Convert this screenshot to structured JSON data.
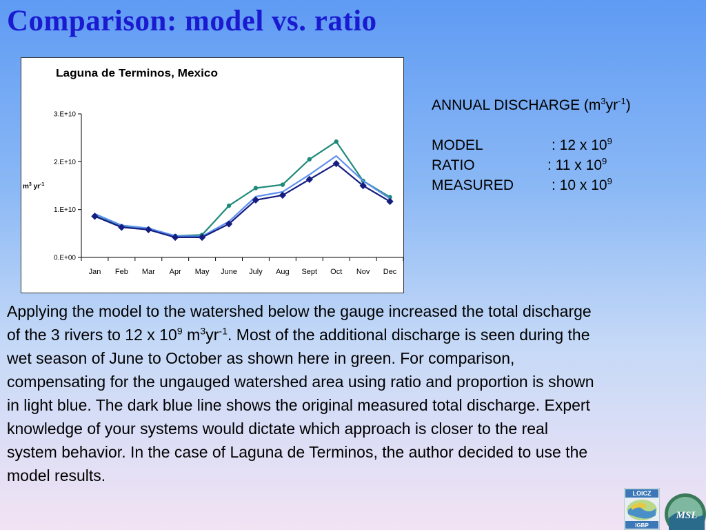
{
  "slide": {
    "title": "Comparison: model vs. ratio"
  },
  "annual": {
    "heading_pre": "ANNUAL DISCHARGE (m",
    "heading_exp1": "3",
    "heading_mid": "yr",
    "heading_exp2": "-1",
    "heading_post": ")",
    "rows": [
      {
        "label": "MODEL",
        "value": ": 12 x 10",
        "exp": "9"
      },
      {
        "label": "RATIO",
        "value": ": 11 x 10",
        "exp": "9"
      },
      {
        "label": "MEASURED",
        "value": ": 10 x 10",
        "exp": "9"
      }
    ]
  },
  "paragraph": {
    "part1": "Applying the model to the watershed below the gauge increased the total discharge of the 3 rivers to 12 x 10",
    "exp1": "9",
    "part2": " m",
    "exp2": "3",
    "part3": "yr",
    "exp3": "-1",
    "part4": ". Most of the additional discharge is seen during the wet season of June to October as shown here in green. For comparison, compensating for the ungauged watershed area using ratio and proportion is shown in light blue. The dark blue line shows the original measured total discharge. Expert knowledge of your systems would dictate which approach is closer to the real system behavior. In the case of Laguna de Terminos, the author decided to use the model results."
  },
  "logos": {
    "logo1_top": "LOICZ",
    "logo1_bottom": "IGBP",
    "logo2_text": "MSL"
  },
  "chart_data": {
    "type": "line",
    "title": "Laguna de Terminos, Mexico",
    "ylabel": "m",
    "ylabel_exp1": "3",
    "ylabel_mid": " yr",
    "ylabel_exp2": "-1",
    "categories": [
      "Jan",
      "Feb",
      "Mar",
      "Apr",
      "May",
      "June",
      "July",
      "Aug",
      "Sept",
      "Oct",
      "Nov",
      "Dec"
    ],
    "yticks": [
      0,
      10000000000,
      20000000000,
      30000000000
    ],
    "yticklabels": [
      "0.E+00",
      "1.E+10",
      "2.E+10",
      "3.E+10"
    ],
    "ylim": [
      0,
      30000000000
    ],
    "series": [
      {
        "key": "model",
        "color": "#1e8a7a",
        "marker": "circle",
        "values": [
          8700000000,
          6500000000,
          6000000000,
          4500000000,
          4700000000,
          10800000000,
          14500000000,
          15200000000,
          20500000000,
          24200000000,
          16000000000,
          12600000000
        ]
      },
      {
        "key": "ratio",
        "color": "#5b8ff0",
        "marker": "none",
        "values": [
          9100000000,
          6700000000,
          6100000000,
          4500000000,
          4400000000,
          7500000000,
          12700000000,
          13700000000,
          17300000000,
          21200000000,
          16000000000,
          12300000000
        ]
      },
      {
        "key": "measured",
        "color": "#151d80",
        "marker": "diamond",
        "values": [
          8600000000,
          6300000000,
          5800000000,
          4200000000,
          4200000000,
          7000000000,
          12000000000,
          13000000000,
          16300000000,
          19600000000,
          15000000000,
          11700000000
        ]
      }
    ]
  }
}
